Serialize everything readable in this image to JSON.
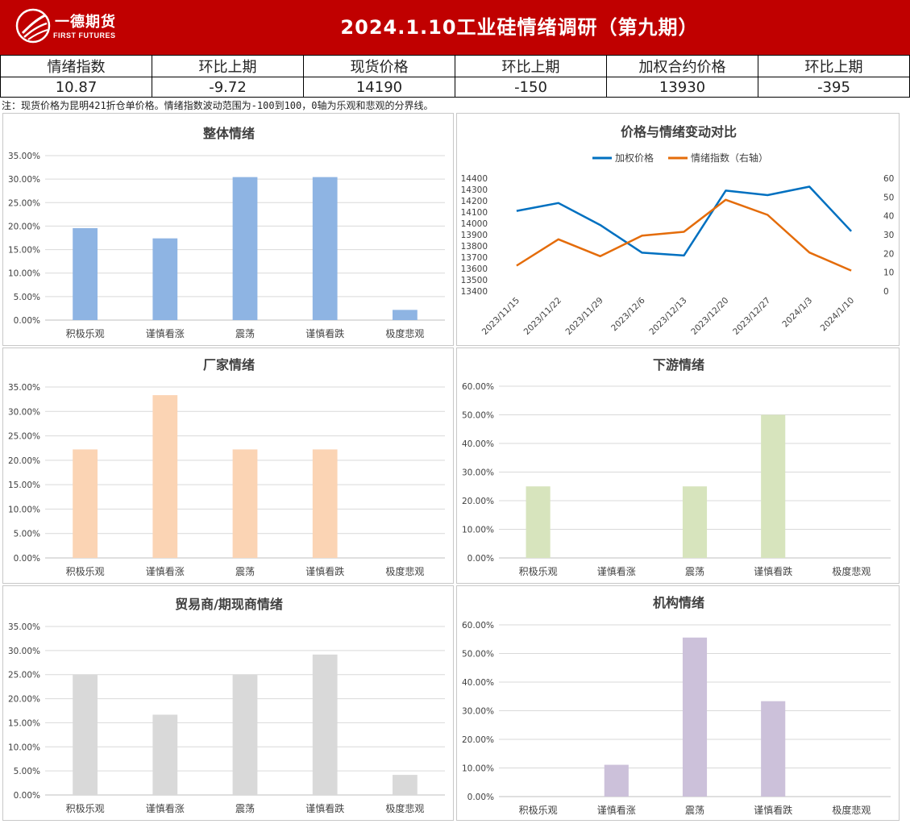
{
  "header": {
    "logo_cn": "一德期货",
    "logo_en": "FIRST FUTURES",
    "title": "2024.1.10工业硅情绪调研（第九期）"
  },
  "stats": {
    "headers": [
      "情绪指数",
      "环比上期",
      "现货价格",
      "环比上期",
      "加权合约价格",
      "环比上期"
    ],
    "values": [
      "10.87",
      "-9.72",
      "14190",
      "-150",
      "13930",
      "-395"
    ]
  },
  "note": "注：现货价格为昆明421折仓单价格。情绪指数波动范围为-100到100，0轴为乐观和悲观的分界线。",
  "colors": {
    "banner": "#c00000",
    "overall": "#8eb4e3",
    "factory": "#fbd4b4",
    "downstream": "#d7e4bd",
    "trader": "#d9d9d9",
    "institution": "#ccc1da",
    "price_line": "#0070c0",
    "sentiment_line": "#e46c0a"
  },
  "chart_data": [
    {
      "type": "bar",
      "title": "整体情绪",
      "categories": [
        "积极乐观",
        "谨慎看涨",
        "震荡",
        "谨慎看跌",
        "极度悲观"
      ],
      "values": [
        19.57,
        17.39,
        30.43,
        30.43,
        2.17
      ],
      "ylim": [
        0,
        35
      ],
      "yticks": [
        "0.00%",
        "5.00%",
        "10.00%",
        "15.00%",
        "20.00%",
        "25.00%",
        "30.00%",
        "35.00%"
      ],
      "grid": true
    },
    {
      "type": "line",
      "title": "价格与情绪变动对比",
      "x": [
        "2023/11/15",
        "2023/11/22",
        "2023/11/29",
        "2023/12/6",
        "2023/12/13",
        "2023/12/20",
        "2023/12/27",
        "2024/1/3",
        "2024/1/10"
      ],
      "series": [
        {
          "name": "加权价格",
          "axis": "left",
          "values": [
            14110,
            14180,
            13985,
            13740,
            13715,
            14290,
            14250,
            14325,
            13930
          ]
        },
        {
          "name": "情绪指数（右轴）",
          "axis": "right",
          "values": [
            13.5,
            27.5,
            18.5,
            29.5,
            31.5,
            48.5,
            40.5,
            20.5,
            10.87
          ]
        }
      ],
      "ylim_left": [
        13400,
        14400
      ],
      "yticks_left": [
        "13400",
        "13500",
        "13600",
        "13700",
        "13800",
        "13900",
        "14000",
        "14100",
        "14200",
        "14300",
        "14400"
      ],
      "ylim_right": [
        0,
        60
      ],
      "yticks_right": [
        "0",
        "10",
        "20",
        "30",
        "40",
        "50",
        "60"
      ],
      "legend": "top",
      "grid": false
    },
    {
      "type": "bar",
      "title": "厂家情绪",
      "categories": [
        "积极乐观",
        "谨慎看涨",
        "震荡",
        "谨慎看跌",
        "极度悲观"
      ],
      "values": [
        22.22,
        33.33,
        22.22,
        22.22,
        0
      ],
      "ylim": [
        0,
        35
      ],
      "yticks": [
        "0.00%",
        "5.00%",
        "10.00%",
        "15.00%",
        "20.00%",
        "25.00%",
        "30.00%",
        "35.00%"
      ],
      "grid": true
    },
    {
      "type": "bar",
      "title": "下游情绪",
      "categories": [
        "积极乐观",
        "谨慎看涨",
        "震荡",
        "谨慎看跌",
        "极度悲观"
      ],
      "values": [
        25,
        0,
        25,
        50,
        0
      ],
      "ylim": [
        0,
        60
      ],
      "yticks": [
        "0.00%",
        "10.00%",
        "20.00%",
        "30.00%",
        "40.00%",
        "50.00%",
        "60.00%"
      ],
      "grid": true
    },
    {
      "type": "bar",
      "title": "贸易商/期现商情绪",
      "categories": [
        "积极乐观",
        "谨慎看涨",
        "震荡",
        "谨慎看跌",
        "极度悲观"
      ],
      "values": [
        25,
        16.67,
        25,
        29.17,
        4.17
      ],
      "ylim": [
        0,
        35
      ],
      "yticks": [
        "0.00%",
        "5.00%",
        "10.00%",
        "15.00%",
        "20.00%",
        "25.00%",
        "30.00%",
        "35.00%"
      ],
      "grid": true
    },
    {
      "type": "bar",
      "title": "机构情绪",
      "categories": [
        "积极乐观",
        "谨慎看涨",
        "震荡",
        "谨慎看跌",
        "极度悲观"
      ],
      "values": [
        0,
        11.11,
        55.56,
        33.33,
        0
      ],
      "ylim": [
        0,
        60
      ],
      "yticks": [
        "0.00%",
        "10.00%",
        "20.00%",
        "30.00%",
        "40.00%",
        "50.00%",
        "60.00%"
      ],
      "grid": true
    }
  ]
}
